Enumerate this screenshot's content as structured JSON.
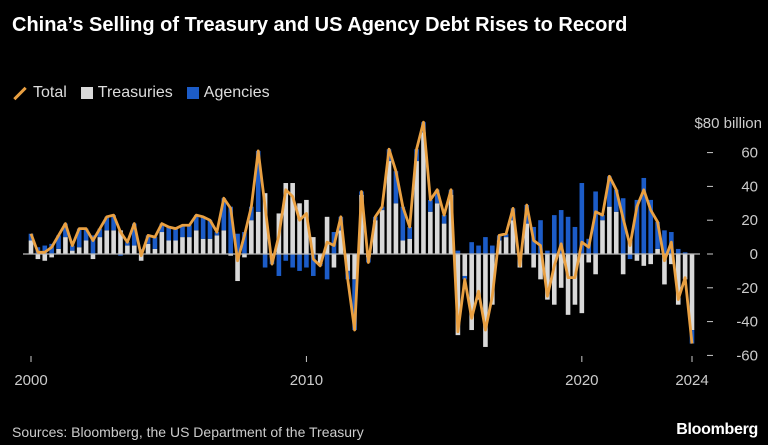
{
  "title": "China’s Selling of Treasury and US Agency Debt Rises to Record",
  "legend": [
    {
      "label": "Total",
      "color": "#e9a042",
      "kind": "line"
    },
    {
      "label": "Treasuries",
      "color": "#d9d9d9",
      "kind": "bar"
    },
    {
      "label": "Agencies",
      "color": "#1c5cc8",
      "kind": "bar"
    }
  ],
  "source": "Sources: Bloomberg, the US Department of the Treasury",
  "logo": "Bloomberg",
  "chart_data": {
    "type": "bar",
    "subtype": "stacked bar with line overlay",
    "frequency": "quarterly",
    "start": "2000 Q1",
    "end": "2024 Q1",
    "y_unit_label": "$80 billion",
    "ylim": [
      -60,
      80
    ],
    "y_ticks": [
      60,
      40,
      20,
      0,
      -20,
      -40,
      -60
    ],
    "y_tick_labels": [
      "60",
      "40",
      "20",
      "0",
      "-20",
      "-40",
      "-60"
    ],
    "x_ticks": [
      2000,
      2010,
      2020,
      2024
    ],
    "x_tick_labels": [
      "2000",
      "2010",
      "2020",
      "2024"
    ],
    "y_axis_side": "right",
    "grid": false,
    "legend_position": "top-left",
    "series": [
      {
        "name": "Total",
        "type": "line",
        "color": "#e9a042",
        "values": [
          12,
          1,
          1,
          4,
          11,
          18,
          5,
          15,
          15,
          8,
          15,
          22,
          23,
          13,
          7,
          18,
          -1,
          11,
          10,
          18,
          16,
          15,
          17,
          17,
          23,
          22,
          20,
          13,
          33,
          27,
          -4,
          11,
          28,
          61,
          28,
          -6,
          11,
          38,
          34,
          20,
          24,
          -3,
          -7,
          7,
          5,
          22,
          -15,
          -45,
          37,
          -5,
          22,
          28,
          62,
          49,
          28,
          16,
          62,
          78,
          32,
          38,
          23,
          38,
          -46,
          -15,
          -38,
          -22,
          -45,
          -25,
          11,
          12,
          27,
          -7,
          29,
          8,
          5,
          -25,
          -7,
          6,
          -14,
          -14,
          7,
          4,
          25,
          23,
          46,
          38,
          21,
          5,
          28,
          38,
          26,
          19,
          -4,
          7,
          -27,
          -14,
          -53
        ]
      },
      {
        "name": "Treasuries",
        "type": "bar",
        "color": "#d9d9d9",
        "values": [
          8,
          -3,
          -4,
          -2,
          3,
          10,
          2,
          4,
          8,
          -3,
          10,
          14,
          14,
          14,
          5,
          5,
          -4,
          6,
          3,
          13,
          8,
          8,
          10,
          10,
          14,
          9,
          9,
          11,
          14,
          -1,
          -16,
          -2,
          20,
          25,
          36,
          -2,
          24,
          42,
          42,
          30,
          32,
          10,
          -6,
          22,
          -8,
          14,
          -10,
          -15,
          35,
          -2,
          20,
          26,
          55,
          30,
          8,
          9,
          55,
          72,
          25,
          30,
          18,
          35,
          -48,
          -13,
          -45,
          -27,
          -55,
          -30,
          8,
          10,
          20,
          -8,
          18,
          -8,
          -15,
          -27,
          -30,
          -20,
          -36,
          -30,
          -35,
          -5,
          -12,
          20,
          28,
          25,
          -12,
          8,
          -4,
          -7,
          -6,
          3,
          -18,
          -6,
          -30,
          -15,
          -45
        ]
      },
      {
        "name": "Agencies",
        "type": "bar",
        "color": "#1c5cc8",
        "values": [
          4,
          4,
          5,
          6,
          8,
          8,
          3,
          11,
          7,
          11,
          5,
          8,
          9,
          -1,
          2,
          13,
          3,
          5,
          7,
          5,
          8,
          7,
          7,
          7,
          9,
          13,
          11,
          2,
          19,
          28,
          12,
          13,
          8,
          36,
          -8,
          -4,
          -13,
          -4,
          -8,
          -10,
          -8,
          -13,
          -1,
          -15,
          13,
          8,
          -5,
          -30,
          2,
          -3,
          2,
          2,
          7,
          19,
          20,
          7,
          7,
          6,
          7,
          8,
          5,
          3,
          2,
          -2,
          7,
          5,
          10,
          5,
          3,
          2,
          7,
          1,
          11,
          16,
          20,
          2,
          23,
          26,
          22,
          16,
          42,
          9,
          37,
          3,
          18,
          13,
          33,
          -3,
          32,
          45,
          32,
          16,
          14,
          13,
          3,
          1,
          -8
        ]
      }
    ]
  }
}
